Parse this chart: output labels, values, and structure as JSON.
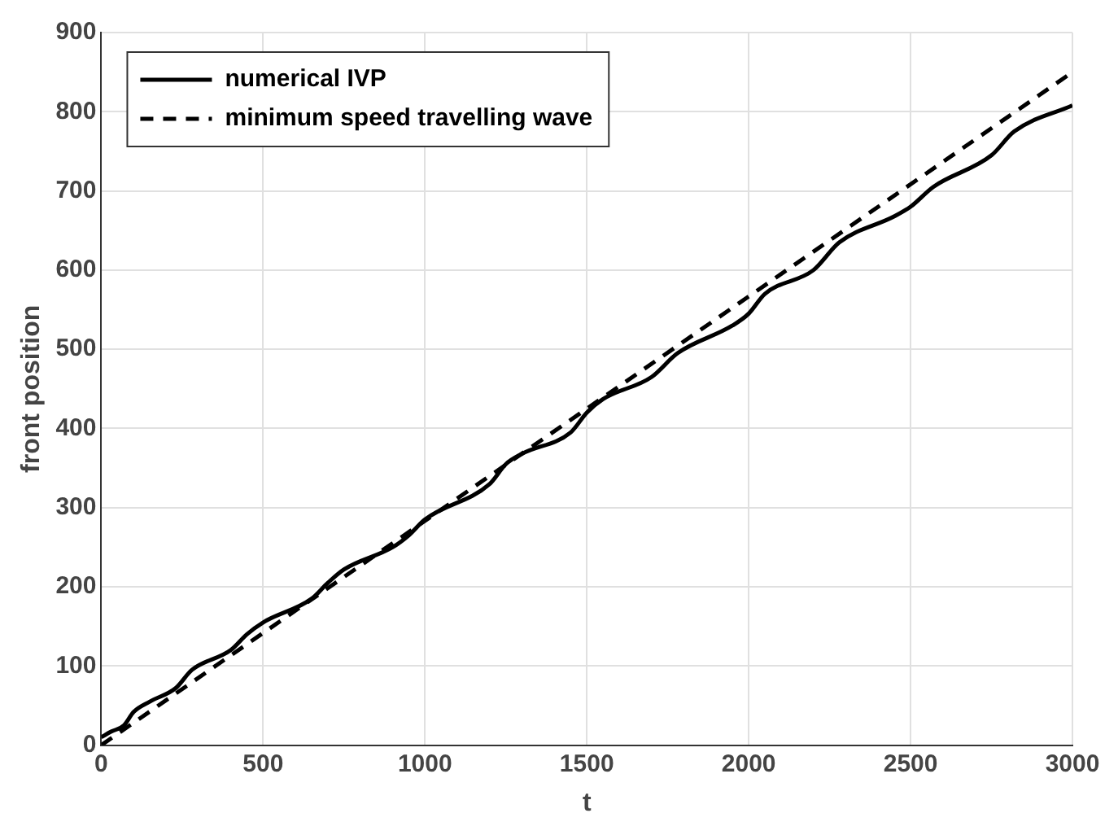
{
  "chart_data": {
    "type": "line",
    "xlabel": "t",
    "ylabel": "front position",
    "xlim": [
      0,
      3000
    ],
    "ylim": [
      0,
      900
    ],
    "xticks": [
      0,
      500,
      1000,
      1500,
      2000,
      2500,
      3000
    ],
    "yticks": [
      0,
      100,
      200,
      300,
      400,
      500,
      600,
      700,
      800,
      900
    ],
    "grid": true,
    "legend": "top left",
    "marker": "none",
    "series": [
      {
        "name": "numerical IVP",
        "color": "#000000",
        "line_style": "solid",
        "x": [
          0,
          30,
          70,
          100,
          150,
          230,
          280,
          400,
          450,
          500,
          650,
          700,
          750,
          900,
          950,
          1000,
          1200,
          1250,
          1300,
          1450,
          1500,
          1550,
          1700,
          1780,
          1950,
          2000,
          2050,
          2200,
          2280,
          2450,
          2500,
          2570,
          2750,
          2820,
          3000
        ],
        "values": [
          10,
          17,
          25,
          42,
          55,
          72,
          95,
          120,
          140,
          155,
          185,
          205,
          222,
          250,
          265,
          285,
          330,
          355,
          368,
          395,
          420,
          437,
          465,
          495,
          530,
          545,
          570,
          600,
          635,
          668,
          680,
          705,
          745,
          775,
          808
        ]
      },
      {
        "name": "minimum speed travelling wave",
        "color": "#000000",
        "line_style": "dashed",
        "x": [
          0,
          3000
        ],
        "values": [
          0,
          850
        ]
      }
    ]
  }
}
